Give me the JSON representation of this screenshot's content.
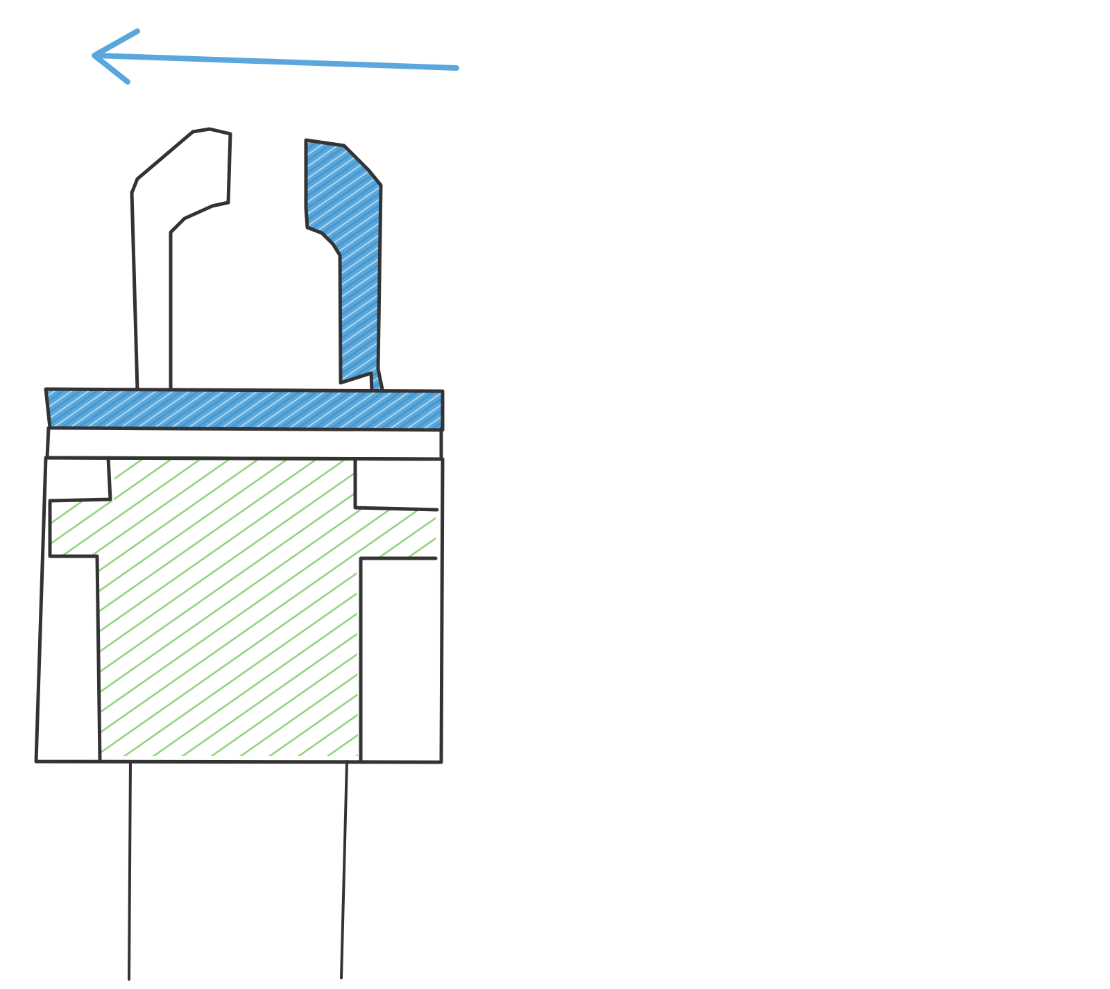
{
  "diagram": {
    "direction_arrow": {
      "icon": "left-arrow-icon",
      "direction": "left"
    },
    "colors": {
      "outline": "#333333",
      "moving_part_fill": "#5aa7dc",
      "moving_part_hatch": "#ffffff",
      "fixed_part_hatch": "#8fd17a",
      "arrow": "#5aa7dc",
      "background": "#ffffff"
    },
    "parts": [
      {
        "id": "left-jaw",
        "fill": "none"
      },
      {
        "id": "right-jaw",
        "fill": "blue-hatched"
      },
      {
        "id": "slide-plate",
        "fill": "blue-hatched"
      },
      {
        "id": "housing-body",
        "fill": "green-hatched"
      },
      {
        "id": "mounting-legs",
        "fill": "none"
      }
    ]
  }
}
